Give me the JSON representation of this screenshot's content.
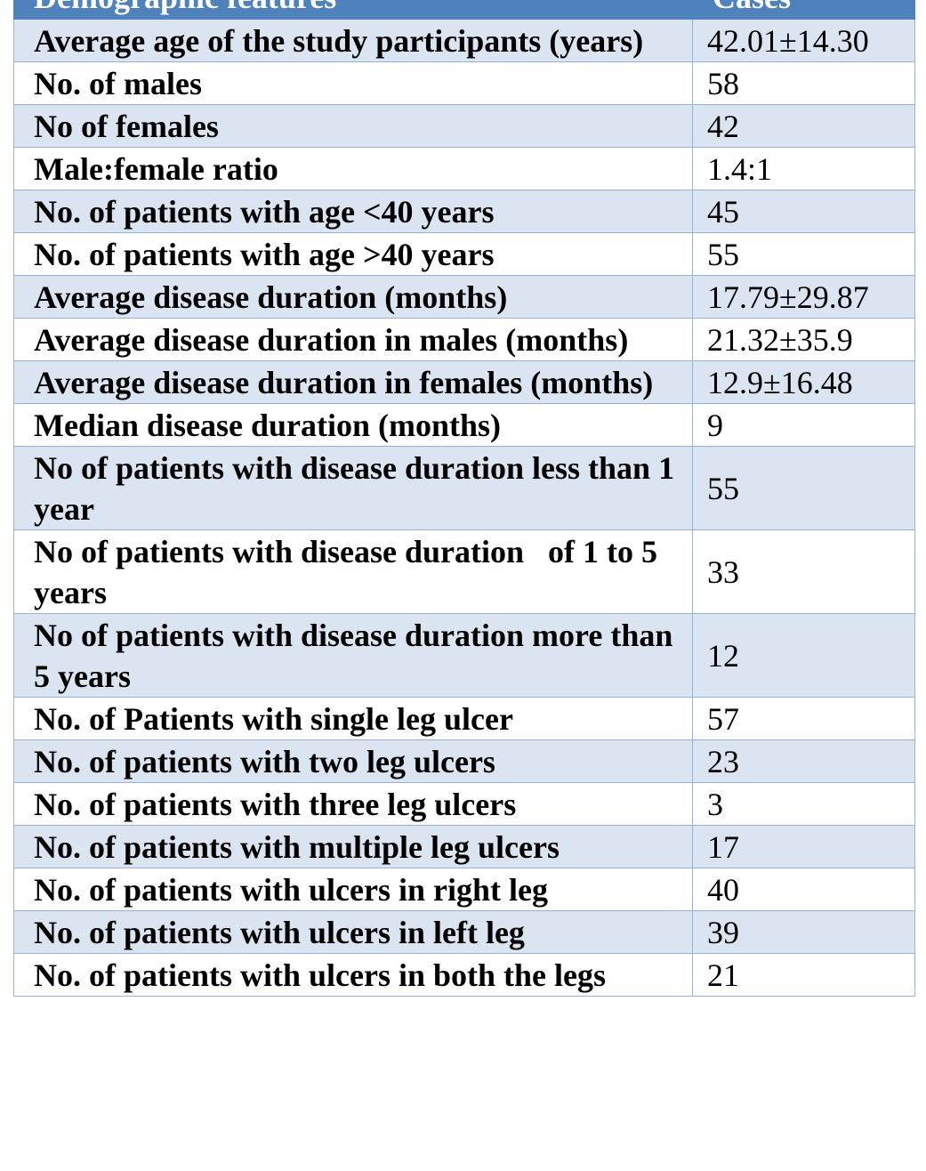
{
  "table": {
    "header": [
      "Demographic features",
      "Cases"
    ],
    "rows": [
      [
        "Average age of the study participants (years)",
        "42.01±14.30"
      ],
      [
        "No. of males",
        "58"
      ],
      [
        "No of females",
        "42"
      ],
      [
        "Male:female ratio",
        "1.4:1"
      ],
      [
        "No. of patients with age <40 years",
        "45"
      ],
      [
        "No. of patients with age >40 years",
        "55"
      ],
      [
        "Average disease duration (months)",
        "17.79±29.87"
      ],
      [
        "Average disease duration in males (months)",
        "21.32±35.9"
      ],
      [
        "Average disease duration in females (months)",
        "12.9±16.48"
      ],
      [
        "Median disease duration (months)",
        "9"
      ],
      [
        "No of patients with disease duration less than 1 year",
        "55"
      ],
      [
        "No of patients with disease duration   of 1 to 5 years",
        "33"
      ],
      [
        "No of patients with disease duration more than 5 years",
        "12"
      ],
      [
        "No. of Patients with single leg ulcer",
        "57"
      ],
      [
        "No. of patients with two leg ulcers",
        "23"
      ],
      [
        "No. of patients with three leg ulcers",
        "3"
      ],
      [
        "No. of patients with multiple leg ulcers",
        "17"
      ],
      [
        "No. of patients with ulcers in right leg",
        "40"
      ],
      [
        "No. of patients with ulcers in left leg",
        "39"
      ],
      [
        "No. of patients with ulcers in both the legs",
        "21"
      ]
    ]
  }
}
